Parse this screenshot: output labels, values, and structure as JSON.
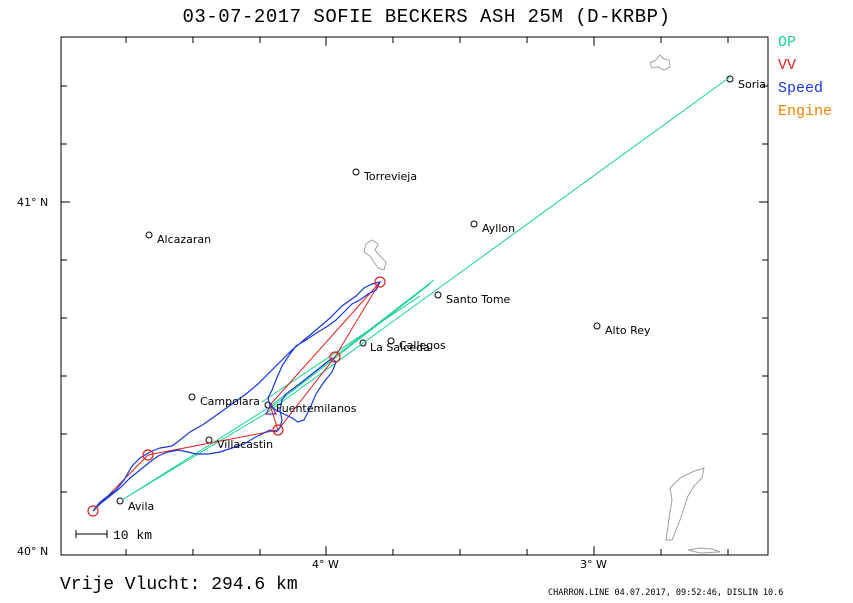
{
  "title": "03-07-2017   SOFIE BECKERS    ASH 25M (D-KRBP)",
  "legend": [
    {
      "label": "OP",
      "color": "#19d18f"
    },
    {
      "label": "VV",
      "color": "#e02020"
    },
    {
      "label": "Speed",
      "color": "#1838d8"
    },
    {
      "label": "Engine",
      "color": "#f08000"
    }
  ],
  "scale_label": "10 km",
  "distance_label": "Vrije Vlucht:  294.6 km",
  "footer": "CHARRON.LINE 04.07.2017, 09:52:46, DISLIN 10.6",
  "axes": {
    "y_labels": [
      "41° N",
      "40° N"
    ],
    "x_labels": [
      "4° W",
      "3° W"
    ]
  },
  "places": [
    {
      "name": "Soria"
    },
    {
      "name": "Torrevieja"
    },
    {
      "name": "Ayllon"
    },
    {
      "name": "Alcazaran"
    },
    {
      "name": "Santo Tome"
    },
    {
      "name": "Alto Rey"
    },
    {
      "name": "Callegos"
    },
    {
      "name": "La Salceda"
    },
    {
      "name": "Campolara"
    },
    {
      "name": "Fuentemilanos"
    },
    {
      "name": "Villacastin"
    },
    {
      "name": "Avila"
    }
  ],
  "colors": {
    "op_line": "#19d18f",
    "vv_line": "#e02020",
    "speed_line": "#1838d8",
    "engine": "#f08000",
    "start_marker": "#7a1fa0",
    "coast": "#a0a0a0"
  }
}
